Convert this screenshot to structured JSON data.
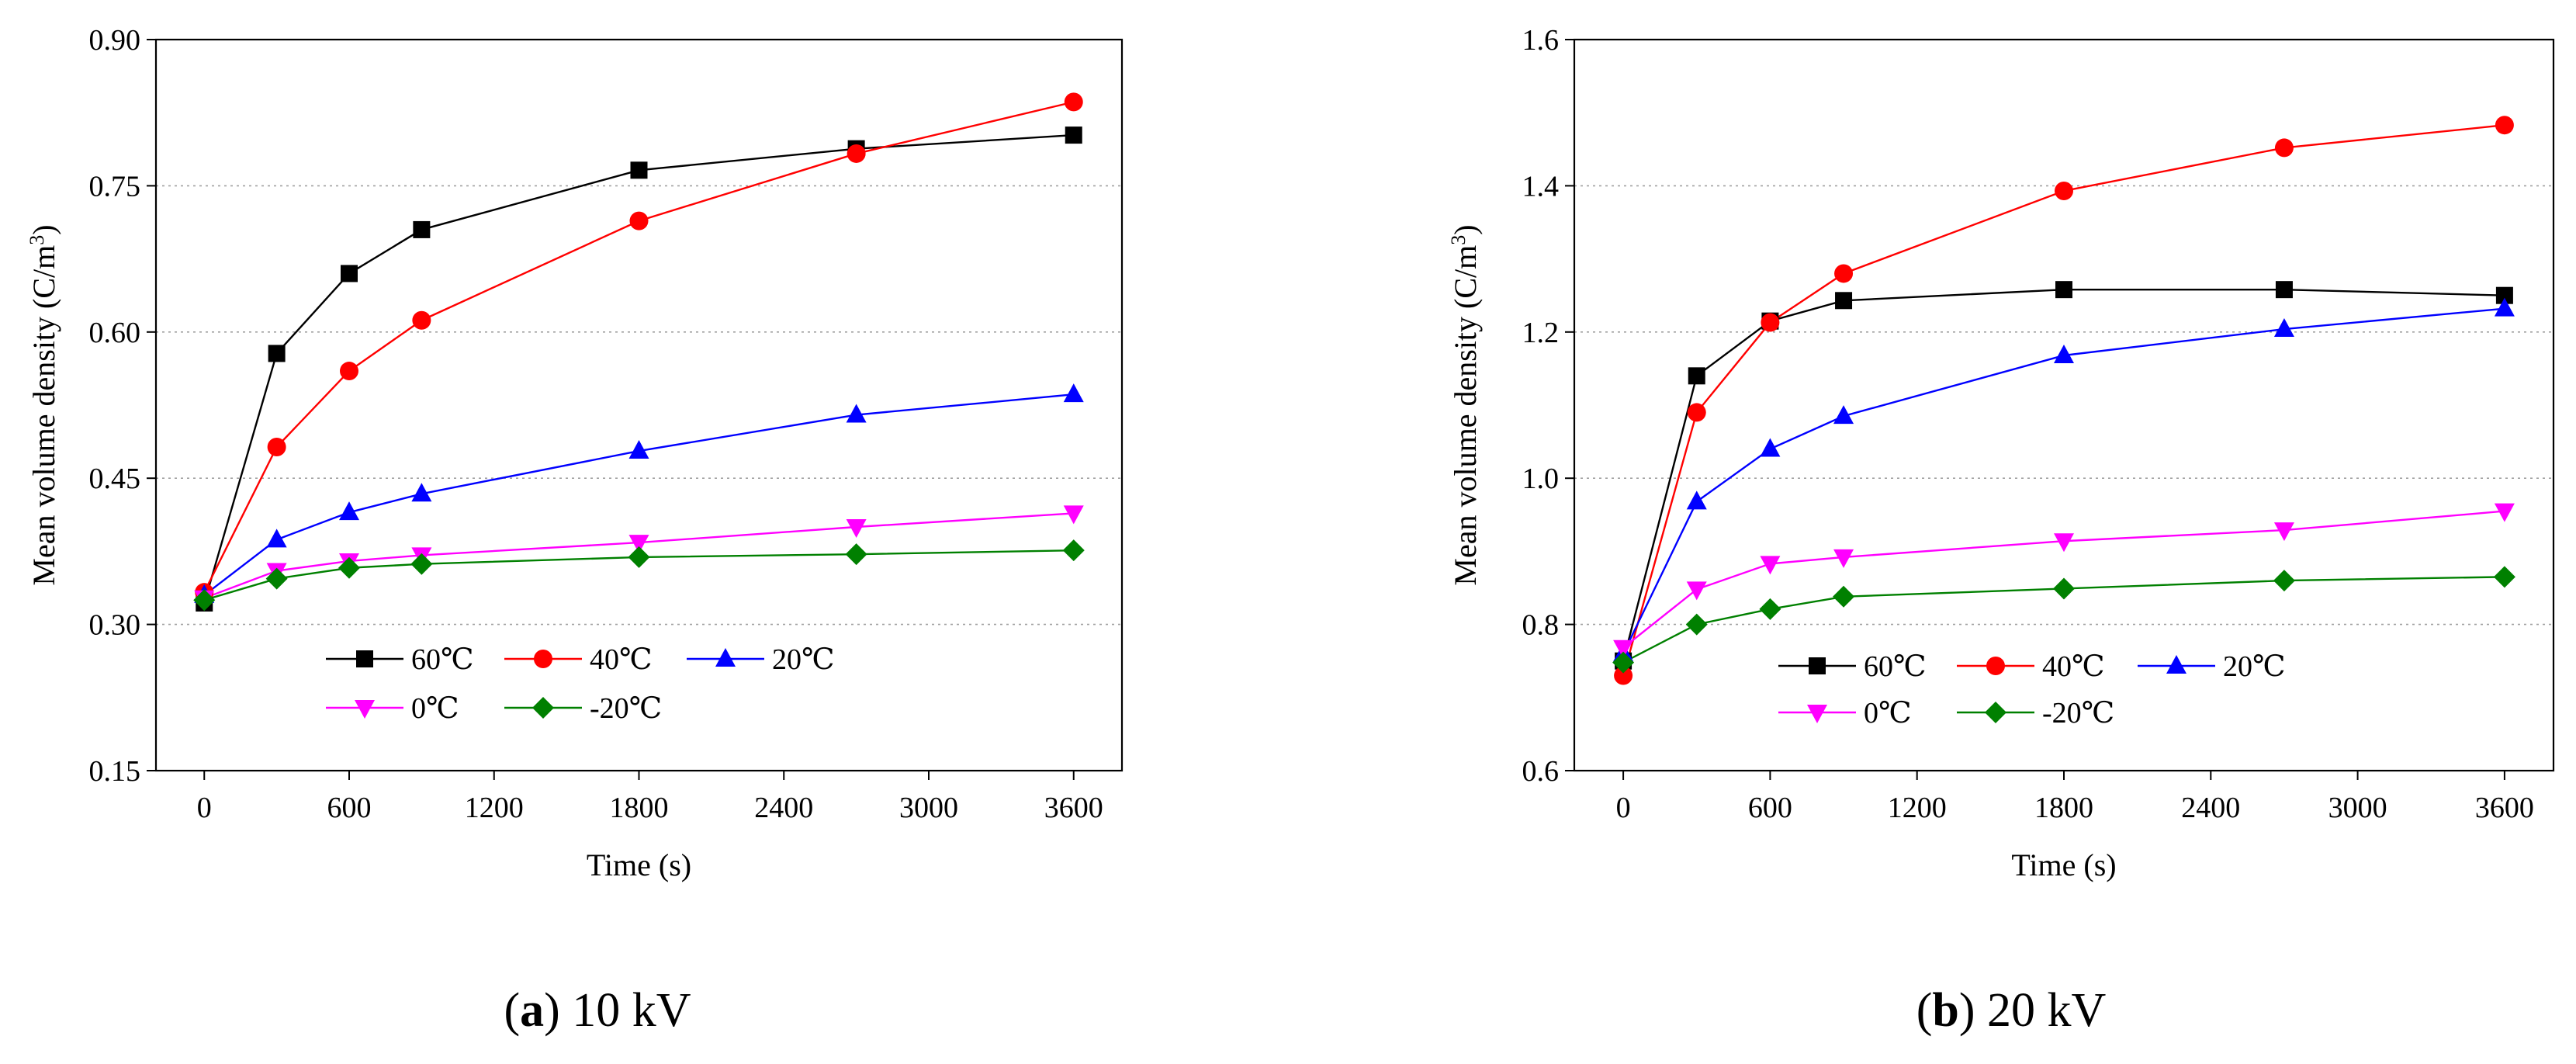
{
  "chart_data": [
    {
      "type": "line",
      "caption_letter": "a",
      "caption_text": "10 kV",
      "xlabel": "Time (s)",
      "ylabel_main": "Mean volume density (C/m",
      "ylabel_sup": "3",
      "ylabel_close": ")",
      "xlim": [
        -200,
        3800
      ],
      "ylim": [
        0.15,
        0.9
      ],
      "x_ticks": [
        0,
        600,
        1200,
        1800,
        2400,
        3000,
        3600
      ],
      "x_tick_labels": [
        "0",
        "600",
        "1200",
        "1800",
        "2400",
        "3000",
        "3600"
      ],
      "y_ticks": [
        0.15,
        0.3,
        0.45,
        0.6,
        0.75,
        0.9
      ],
      "y_tick_labels": [
        "0.15",
        "0.30",
        "0.45",
        "0.60",
        "0.75",
        "0.90"
      ],
      "grid_y": [
        0.3,
        0.45,
        0.6,
        0.75
      ],
      "legend_position": "lower-center",
      "x": [
        0,
        300,
        600,
        900,
        1800,
        2700,
        3600
      ],
      "series": [
        {
          "name": "60℃",
          "color": "#000000",
          "marker": "square",
          "values": [
            0.322,
            0.578,
            0.66,
            0.705,
            0.766,
            0.788,
            0.802
          ]
        },
        {
          "name": "40℃",
          "color": "#ff0000",
          "marker": "circle",
          "values": [
            0.333,
            0.482,
            0.56,
            0.612,
            0.714,
            0.783,
            0.836
          ]
        },
        {
          "name": "20℃",
          "color": "#0000ff",
          "marker": "triangle-up",
          "values": [
            0.33,
            0.387,
            0.415,
            0.434,
            0.478,
            0.515,
            0.536
          ]
        },
        {
          "name": "0℃",
          "color": "#ff00ff",
          "marker": "triangle-down",
          "values": [
            0.327,
            0.355,
            0.365,
            0.371,
            0.384,
            0.4,
            0.414
          ]
        },
        {
          "name": "-20℃",
          "color": "#008000",
          "marker": "diamond",
          "values": [
            0.325,
            0.347,
            0.358,
            0.362,
            0.369,
            0.372,
            0.376
          ]
        }
      ]
    },
    {
      "type": "line",
      "caption_letter": "b",
      "caption_text": "20 kV",
      "xlabel": "Time (s)",
      "ylabel_main": "Mean volume density (C/m",
      "ylabel_sup": "3",
      "ylabel_close": ")",
      "xlim": [
        -200,
        3800
      ],
      "ylim": [
        0.6,
        1.6
      ],
      "x_ticks": [
        0,
        600,
        1200,
        1800,
        2400,
        3000,
        3600
      ],
      "x_tick_labels": [
        "0",
        "600",
        "1200",
        "1800",
        "2400",
        "3000",
        "3600"
      ],
      "y_ticks": [
        0.6,
        0.8,
        1.0,
        1.2,
        1.4,
        1.6
      ],
      "y_tick_labels": [
        "0.6",
        "0.8",
        "1.0",
        "1.2",
        "1.4",
        "1.6"
      ],
      "grid_y": [
        0.8,
        1.0,
        1.2,
        1.4
      ],
      "legend_position": "lower-center",
      "x": [
        0,
        300,
        600,
        900,
        1800,
        2700,
        3600
      ],
      "series": [
        {
          "name": "60℃",
          "color": "#000000",
          "marker": "square",
          "values": [
            0.75,
            1.14,
            1.215,
            1.243,
            1.258,
            1.258,
            1.25
          ]
        },
        {
          "name": "40℃",
          "color": "#ff0000",
          "marker": "circle",
          "values": [
            0.73,
            1.09,
            1.213,
            1.28,
            1.393,
            1.452,
            1.483
          ]
        },
        {
          "name": "20℃",
          "color": "#0000ff",
          "marker": "triangle-up",
          "values": [
            0.76,
            0.968,
            1.04,
            1.085,
            1.168,
            1.204,
            1.232
          ]
        },
        {
          "name": "0℃",
          "color": "#ff00ff",
          "marker": "triangle-down",
          "values": [
            0.768,
            0.848,
            0.883,
            0.892,
            0.914,
            0.929,
            0.955
          ]
        },
        {
          "name": "-20℃",
          "color": "#008000",
          "marker": "diamond",
          "values": [
            0.748,
            0.8,
            0.821,
            0.838,
            0.849,
            0.86,
            0.865
          ]
        }
      ]
    }
  ]
}
